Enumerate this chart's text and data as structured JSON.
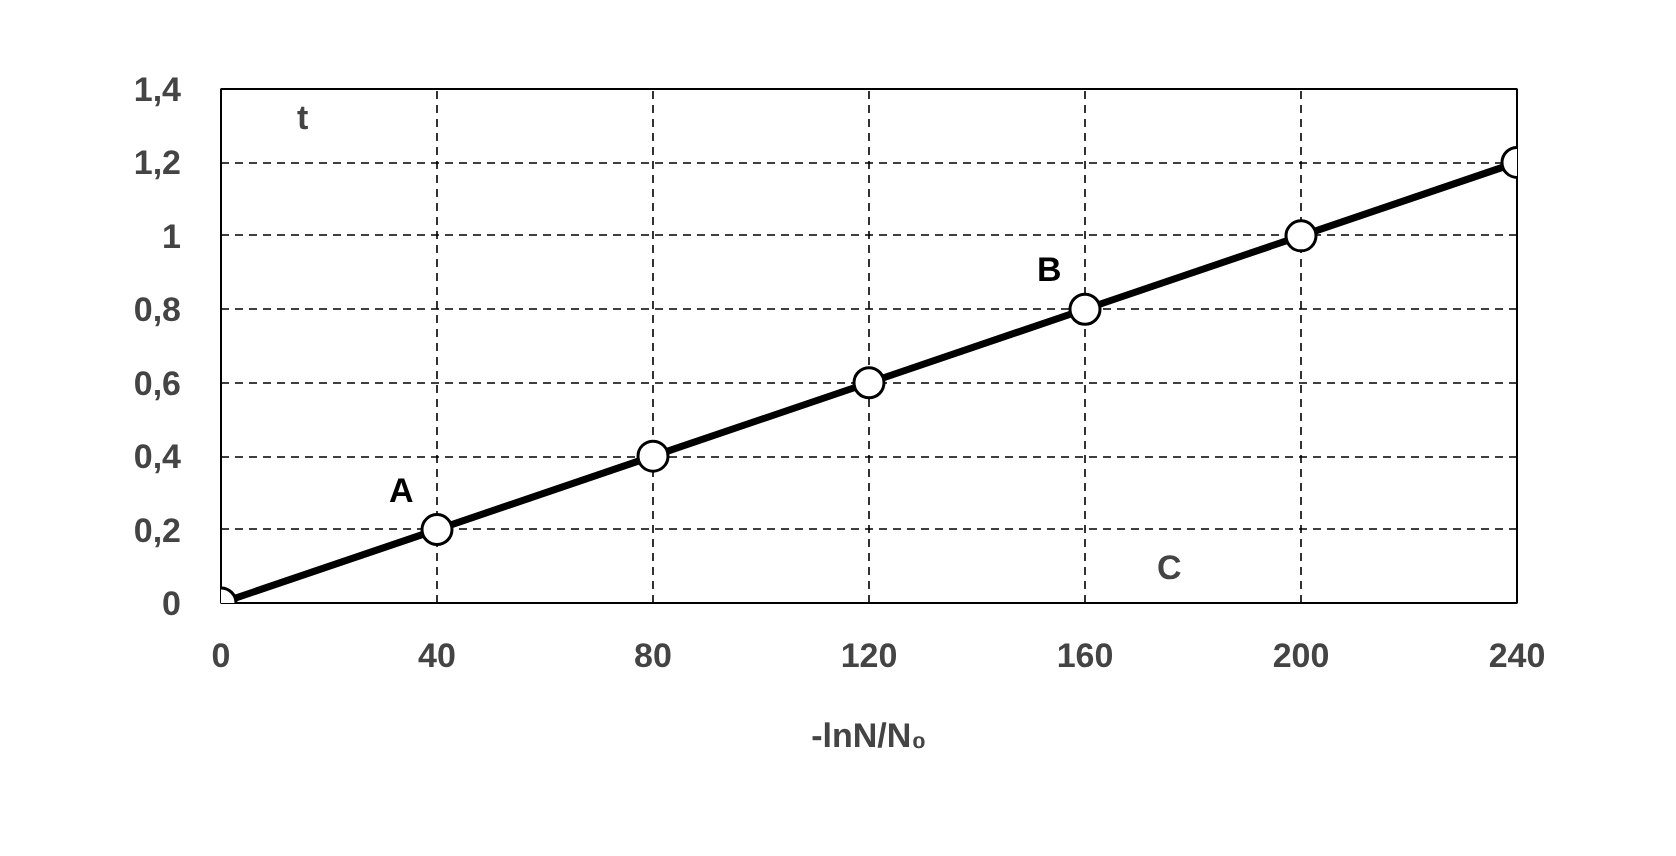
{
  "chart_data": {
    "type": "line",
    "x": [
      0,
      40,
      80,
      120,
      160,
      200,
      240
    ],
    "series": [
      {
        "color": "#000000",
        "values": [
          0,
          0.2,
          0.4,
          0.6,
          0.8,
          1.0,
          1.2
        ]
      }
    ],
    "xlim": [
      0,
      240
    ],
    "xticks": [
      0,
      40,
      80,
      120,
      160,
      200,
      240
    ],
    "ylim": [
      0,
      1.4
    ],
    "yticks": [
      0,
      {
        "value": 0.2,
        "label": "0,2"
      },
      {
        "value": 0.4,
        "label": "0,4"
      },
      {
        "value": 0.6,
        "label": "0,6"
      },
      {
        "value": 0.8,
        "label": "0,8"
      },
      1,
      {
        "value": 1.2,
        "label": "1,2"
      },
      {
        "value": 1.4,
        "label": "1,4"
      }
    ],
    "xlabel": "-lnN/N₀",
    "ylabel": "t",
    "annotations": [
      {
        "text": "A",
        "x": 40,
        "y": 0.2
      },
      {
        "text": "B",
        "x": 160,
        "y": 0.8
      },
      "C"
    ],
    "grid": true,
    "marker": "circle",
    "line_style": "solid"
  }
}
